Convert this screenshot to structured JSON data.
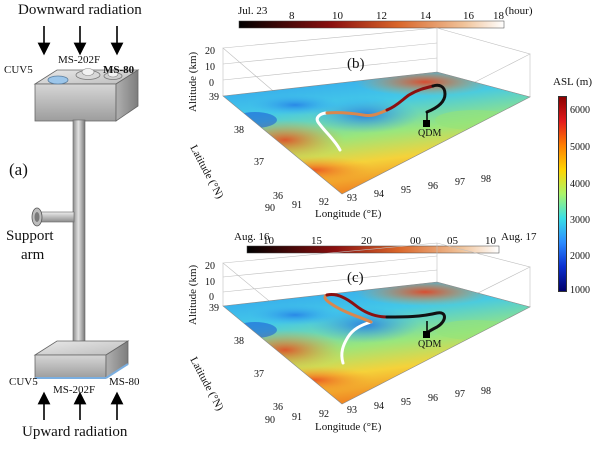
{
  "panel_a": {
    "label": "(a)",
    "downward": "Downward radiation",
    "upward": "Upward radiation",
    "support": [
      "Support",
      "arm"
    ],
    "top_sensors": [
      "CUV5",
      "MS-202F",
      "MS-80"
    ],
    "bottom_sensors": [
      "CUV5",
      "MS-202F",
      "MS-80"
    ]
  },
  "panel_b": {
    "label": "(b)",
    "date_left": "Jul. 23",
    "time_ticks": [
      "8",
      "10",
      "12",
      "14",
      "16",
      "18"
    ],
    "time_unit": "(hour)",
    "station": "QDM"
  },
  "panel_c": {
    "label": "(c)",
    "date_left": "Aug. 16",
    "date_right": "Aug. 17",
    "time_ticks": [
      "10",
      "15",
      "20",
      "00",
      "05",
      "10"
    ],
    "station": "QDM"
  },
  "axes": {
    "altitude_label": "Altitude (km)",
    "altitude_ticks": [
      "20",
      "10",
      "0"
    ],
    "latitude_label": "Latitude (°N)",
    "latitude_ticks": [
      "39",
      "38",
      "37",
      "36"
    ],
    "longitude_label": "Longitude (°E)",
    "longitude_ticks": [
      "90",
      "91",
      "92",
      "93",
      "94",
      "95",
      "96",
      "97",
      "98"
    ]
  },
  "colorbar": {
    "title": "ASL (m)",
    "ticks": [
      "6000",
      "5000",
      "4000",
      "3000",
      "2000",
      "1000"
    ],
    "colors": [
      "#8b0000",
      "#e31a1c",
      "#ff7f00",
      "#ffd400",
      "#aaf56a",
      "#38dfe6",
      "#2b8bff",
      "#0b2fd0",
      "#00006b"
    ]
  }
}
